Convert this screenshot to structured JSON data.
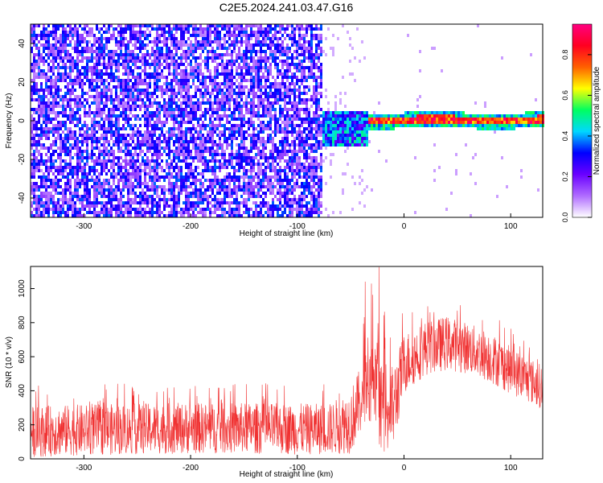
{
  "title": "C2E5.2024.241.03.47.G16",
  "chart_data": [
    {
      "type": "heatmap",
      "xlabel": "Height of straight line (km)",
      "ylabel": "Frequency (Hz)",
      "xlim": [
        -350,
        130
      ],
      "ylim": [
        -50,
        50
      ],
      "xticks": [
        "-300",
        "-200",
        "-100",
        "0",
        "100"
      ],
      "yticks": [
        "-40",
        "-20",
        "0",
        "20",
        "40"
      ],
      "colorbar": {
        "label": "Normalized spectral amplitude",
        "range": [
          0,
          0.95
        ],
        "ticks": [
          "0.0",
          "0.2",
          "0.4",
          "0.6",
          "0.8"
        ],
        "colors": [
          "#ffffff",
          "#b06cff",
          "#6a00ff",
          "#0000ff",
          "#00d8ff",
          "#00ff60",
          "#ffff00",
          "#ff6000",
          "#ff0020",
          "#ff0080"
        ]
      },
      "regions": [
        {
          "x_range": [
            -350,
            -77
          ],
          "y_range": [
            -50,
            50
          ],
          "description": "noise",
          "amplitude": 0.05
        },
        {
          "x_range": [
            -77,
            -35
          ],
          "y_range": [
            -10,
            5
          ],
          "description": "onset",
          "amplitude": 0.3
        },
        {
          "x_range": [
            -35,
            130
          ],
          "y_center": 1,
          "y_halfwidth": 2,
          "amplitude": 0.85
        }
      ]
    },
    {
      "type": "line",
      "xlabel": "Height of straight line (km)",
      "ylabel": "SNR (10 * v/v)",
      "xlim": [
        -350,
        130
      ],
      "ylim": [
        0,
        1130
      ],
      "xticks": [
        "-300",
        "-200",
        "-100",
        "0",
        "100"
      ],
      "yticks": [
        "0",
        "200",
        "400",
        "600",
        "800",
        "1000"
      ],
      "series": [
        {
          "color": "#f03232",
          "x": [
            -350,
            -300,
            -250,
            -200,
            -150,
            -100,
            -70,
            -50,
            -40,
            -30,
            -20,
            -10,
            0,
            20,
            40,
            60,
            80,
            100,
            130
          ],
          "mean": [
            160,
            170,
            175,
            180,
            180,
            175,
            175,
            220,
            350,
            420,
            300,
            300,
            560,
            650,
            680,
            650,
            600,
            520,
            420
          ],
          "spread": [
            150,
            150,
            150,
            150,
            150,
            150,
            150,
            190,
            200,
            240,
            260,
            250,
            180,
            160,
            160,
            150,
            150,
            140,
            130
          ]
        }
      ]
    }
  ]
}
